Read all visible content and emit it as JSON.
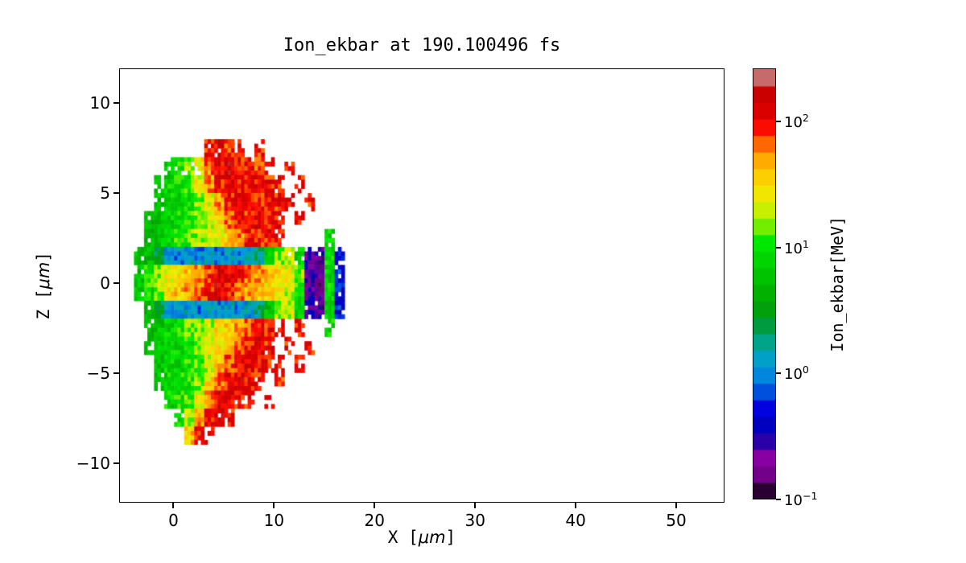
{
  "figure": {
    "title": "Ion_ekbar at 190.100496 fs",
    "xlabel": {
      "pre": "X [",
      "math": "μm",
      "post": "]"
    },
    "ylabel": {
      "pre": "Z [",
      "math": "μm",
      "post": "]"
    }
  },
  "axes": {
    "xlim": [
      -5.4,
      54.8
    ],
    "ylim": [
      -12.2,
      11.9
    ],
    "xticks": [
      0,
      10,
      20,
      30,
      40,
      50
    ],
    "xtick_labels": [
      "0",
      "10",
      "20",
      "30",
      "40",
      "50"
    ],
    "yticks": [
      10,
      5,
      0,
      -5,
      -10
    ],
    "ytick_labels": [
      "10",
      "5",
      "0",
      "−5",
      "−10"
    ]
  },
  "colorbar": {
    "label": "Ion_ekbar[MeV]",
    "scale": "log",
    "tick_base": "10",
    "tick_exponents": [
      2,
      1,
      0,
      -1
    ],
    "tick_exponent_labels": [
      "2",
      "1",
      "0",
      "−1"
    ],
    "log_range": [
      -1,
      2.42
    ],
    "bands": 26,
    "colormap_name": "nipy_spectral",
    "colormap_stops": [
      [
        0.0,
        "#000000"
      ],
      [
        0.05,
        "#6e0084"
      ],
      [
        0.1,
        "#8a00a3"
      ],
      [
        0.15,
        "#0000aa"
      ],
      [
        0.21,
        "#0000dd"
      ],
      [
        0.27,
        "#0077dd"
      ],
      [
        0.31,
        "#0099dd"
      ],
      [
        0.35,
        "#00aaa8"
      ],
      [
        0.4,
        "#009944"
      ],
      [
        0.45,
        "#00a300"
      ],
      [
        0.53,
        "#00c800"
      ],
      [
        0.6,
        "#00ea00"
      ],
      [
        0.65,
        "#a8f000"
      ],
      [
        0.7,
        "#eded00"
      ],
      [
        0.76,
        "#ffc900"
      ],
      [
        0.81,
        "#ff9400"
      ],
      [
        0.86,
        "#ff0f00"
      ],
      [
        0.9,
        "#dd0000"
      ],
      [
        0.96,
        "#bf0000"
      ],
      [
        1.0,
        "#cccccc"
      ]
    ]
  },
  "chart_data": {
    "type": "heatmap",
    "title": "Ion_ekbar at 190.100496 fs",
    "xlabel": "X [μm]",
    "ylabel": "Z [μm]",
    "value_label": "Ion_ekbar[MeV]",
    "value_scale": "log10(MeV)",
    "value_range_mev": [
      0.1,
      260
    ],
    "x_centers": [
      -3.5,
      -2.5,
      -1.5,
      -0.5,
      0.5,
      1.5,
      2.5,
      3.5,
      4.5,
      5.5,
      6.5,
      7.5,
      8.5,
      9.5,
      10.5,
      11.5,
      12.5,
      13.5,
      14.5,
      15.5,
      16.5
    ],
    "z_centers": [
      7.5,
      6.5,
      5.5,
      4.5,
      3.5,
      2.5,
      1.5,
      0.5,
      -0.5,
      -1.5,
      -2.5,
      -3.5,
      -4.5,
      -5.5,
      -6.5,
      -7.5,
      -8.5
    ],
    "log10_values": [
      [
        null,
        null,
        null,
        null,
        null,
        null,
        null,
        2.0,
        2.1,
        1.9,
        2.0,
        null,
        2.0,
        null,
        null,
        null,
        null,
        null,
        null,
        null,
        null
      ],
      [
        null,
        null,
        null,
        0.9,
        1.0,
        1.2,
        1.5,
        1.8,
        2.0,
        2.1,
        2.0,
        2.0,
        1.9,
        2.0,
        null,
        2.0,
        null,
        null,
        null,
        null,
        null
      ],
      [
        null,
        null,
        0.8,
        0.9,
        1.0,
        1.1,
        1.4,
        1.7,
        2.0,
        2.1,
        2.0,
        2.0,
        2.0,
        2.0,
        2.0,
        null,
        2.0,
        null,
        null,
        null,
        null
      ],
      [
        null,
        null,
        0.8,
        0.9,
        0.9,
        1.0,
        1.2,
        1.4,
        1.7,
        2.0,
        2.1,
        2.0,
        2.0,
        2.0,
        2.0,
        2.0,
        null,
        2.0,
        null,
        null,
        null
      ],
      [
        null,
        0.7,
        0.8,
        0.9,
        1.0,
        1.0,
        1.2,
        1.3,
        1.5,
        1.8,
        2.0,
        2.0,
        2.1,
        2.0,
        2.0,
        null,
        2.0,
        null,
        null,
        null,
        null
      ],
      [
        null,
        0.7,
        0.8,
        0.9,
        1.0,
        1.1,
        1.2,
        1.3,
        1.4,
        1.6,
        1.8,
        2.0,
        2.0,
        2.0,
        2.0,
        null,
        null,
        null,
        null,
        0.9,
        null
      ],
      [
        0.7,
        0.7,
        0.4,
        0.1,
        0.0,
        0.1,
        0.0,
        0.1,
        0.0,
        0.1,
        0.0,
        0.1,
        0.3,
        0.8,
        1.2,
        1.3,
        0.9,
        -0.6,
        -0.7,
        0.9,
        -0.3
      ],
      [
        0.8,
        1.0,
        1.2,
        1.4,
        1.5,
        1.6,
        1.7,
        1.9,
        2.1,
        2.1,
        2.0,
        1.8,
        1.7,
        1.6,
        1.5,
        1.4,
        1.1,
        -0.6,
        -0.7,
        0.9,
        -0.3
      ],
      [
        0.8,
        1.0,
        1.2,
        1.5,
        1.6,
        1.7,
        1.8,
        2.0,
        2.1,
        2.0,
        1.8,
        1.7,
        1.6,
        1.5,
        1.4,
        1.3,
        1.0,
        -0.6,
        -0.7,
        0.9,
        -0.3
      ],
      [
        null,
        0.7,
        0.4,
        0.1,
        0.0,
        0.1,
        0.0,
        0.1,
        0.0,
        0.1,
        0.0,
        0.1,
        0.3,
        0.8,
        1.2,
        1.3,
        0.9,
        -0.6,
        -0.7,
        0.9,
        -0.3
      ],
      [
        null,
        0.7,
        0.8,
        0.9,
        1.0,
        1.1,
        1.2,
        1.3,
        1.5,
        1.6,
        1.7,
        1.9,
        2.0,
        2.0,
        2.0,
        null,
        2.0,
        null,
        null,
        0.9,
        null
      ],
      [
        null,
        0.7,
        0.8,
        0.9,
        0.9,
        1.0,
        1.2,
        1.3,
        1.5,
        1.7,
        1.9,
        2.0,
        2.1,
        2.0,
        null,
        2.0,
        null,
        2.0,
        null,
        null,
        null
      ],
      [
        null,
        null,
        0.8,
        0.9,
        0.9,
        1.0,
        1.1,
        1.3,
        1.6,
        1.9,
        2.0,
        2.1,
        2.0,
        2.0,
        2.0,
        null,
        2.0,
        null,
        null,
        null,
        null
      ],
      [
        null,
        null,
        0.8,
        0.9,
        1.0,
        1.0,
        1.2,
        1.5,
        1.8,
        2.0,
        2.1,
        2.0,
        2.0,
        null,
        2.0,
        null,
        null,
        null,
        null,
        null,
        null
      ],
      [
        null,
        null,
        null,
        0.9,
        1.0,
        1.1,
        1.4,
        1.8,
        2.0,
        2.1,
        2.0,
        2.0,
        null,
        2.0,
        null,
        null,
        null,
        null,
        null,
        null,
        null
      ],
      [
        null,
        null,
        null,
        null,
        1.0,
        1.3,
        1.7,
        2.0,
        2.1,
        2.0,
        null,
        null,
        null,
        null,
        null,
        null,
        null,
        null,
        null,
        null,
        null
      ],
      [
        null,
        null,
        null,
        null,
        null,
        1.6,
        2.0,
        2.0,
        null,
        null,
        null,
        null,
        null,
        null,
        null,
        null,
        null,
        null,
        null,
        null,
        null
      ]
    ]
  }
}
